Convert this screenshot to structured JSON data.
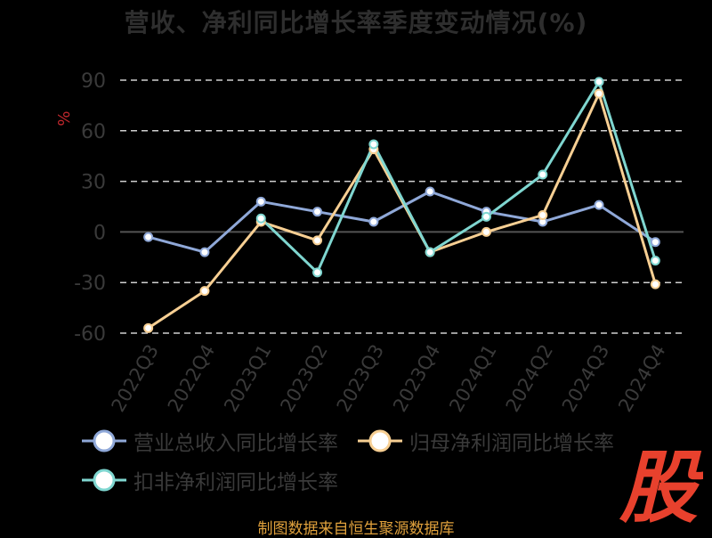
{
  "chart_data": {
    "type": "line",
    "title": "营收、净利同比增长率季度变动情况(%)",
    "ylabel": "%",
    "xlabel": "",
    "categories": [
      "2022Q3",
      "2022Q4",
      "2023Q1",
      "2023Q2",
      "2023Q3",
      "2023Q4",
      "2024Q1",
      "2024Q2",
      "2024Q3",
      "2024Q4"
    ],
    "ylim": [
      -60,
      90
    ],
    "yticks": [
      -60,
      -30,
      0,
      30,
      60,
      90
    ],
    "grid": true,
    "legend_position": "bottom",
    "series": [
      {
        "name": "营业总收入同比增长率",
        "color": "#8fa8d8",
        "values": [
          -3,
          -12,
          18,
          12,
          6,
          24,
          12,
          6,
          16,
          -6
        ]
      },
      {
        "name": "归母净利润同比增长率",
        "color": "#f7cf93",
        "values": [
          -57,
          -35,
          6,
          -5,
          49,
          -12,
          0,
          10,
          82,
          -31
        ]
      },
      {
        "name": "扣非净利润同比增长率",
        "color": "#7fd6d0",
        "values": [
          null,
          null,
          8,
          -24,
          52,
          -12,
          9,
          34,
          89,
          -17
        ]
      }
    ]
  },
  "footer": {
    "source": "制图数据来自恒生聚源数据库"
  },
  "watermark": {
    "text": "股",
    "color": "#e8412d"
  }
}
